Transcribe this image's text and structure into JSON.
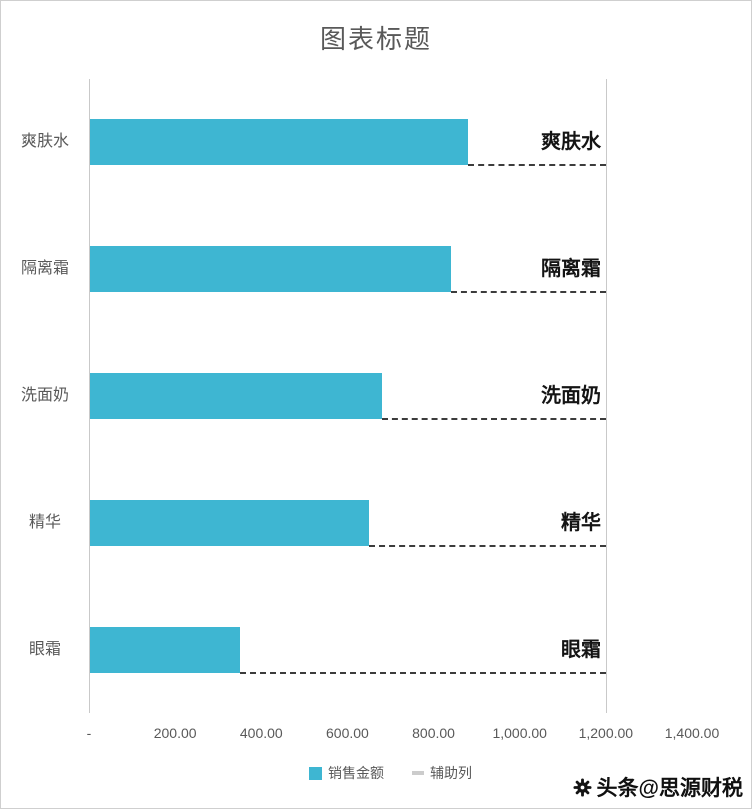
{
  "chart_data": {
    "type": "bar",
    "orientation": "horizontal",
    "title": "图表标题",
    "categories": [
      "爽肤水",
      "隔离霜",
      "洗面奶",
      "精华",
      "眼霜"
    ],
    "series": [
      {
        "name": "销售金额",
        "values": [
          880,
          840,
          680,
          650,
          350
        ]
      },
      {
        "name": "辅助列",
        "values": [
          320,
          360,
          520,
          550,
          850
        ]
      }
    ],
    "aux_labels": [
      "爽肤水",
      "隔离霜",
      "洗面奶",
      "精华",
      "眼霜"
    ],
    "x_ticks": [
      "-",
      "200.00",
      "400.00",
      "600.00",
      "800.00",
      "1,000.00",
      "1,200.00",
      "1,400.00"
    ],
    "x_tick_values": [
      0,
      200,
      400,
      600,
      800,
      1000,
      1200,
      1400
    ],
    "xlim": [
      0,
      1400
    ],
    "aux_end": 1200,
    "bar_color": "#3eb6d2",
    "dash_color": "#3c3c3c",
    "axis_text_color": "#595959",
    "legend_position": "bottom",
    "grid": false
  },
  "watermark": {
    "icon": "gear-icon",
    "text": "头条@思源财税"
  }
}
